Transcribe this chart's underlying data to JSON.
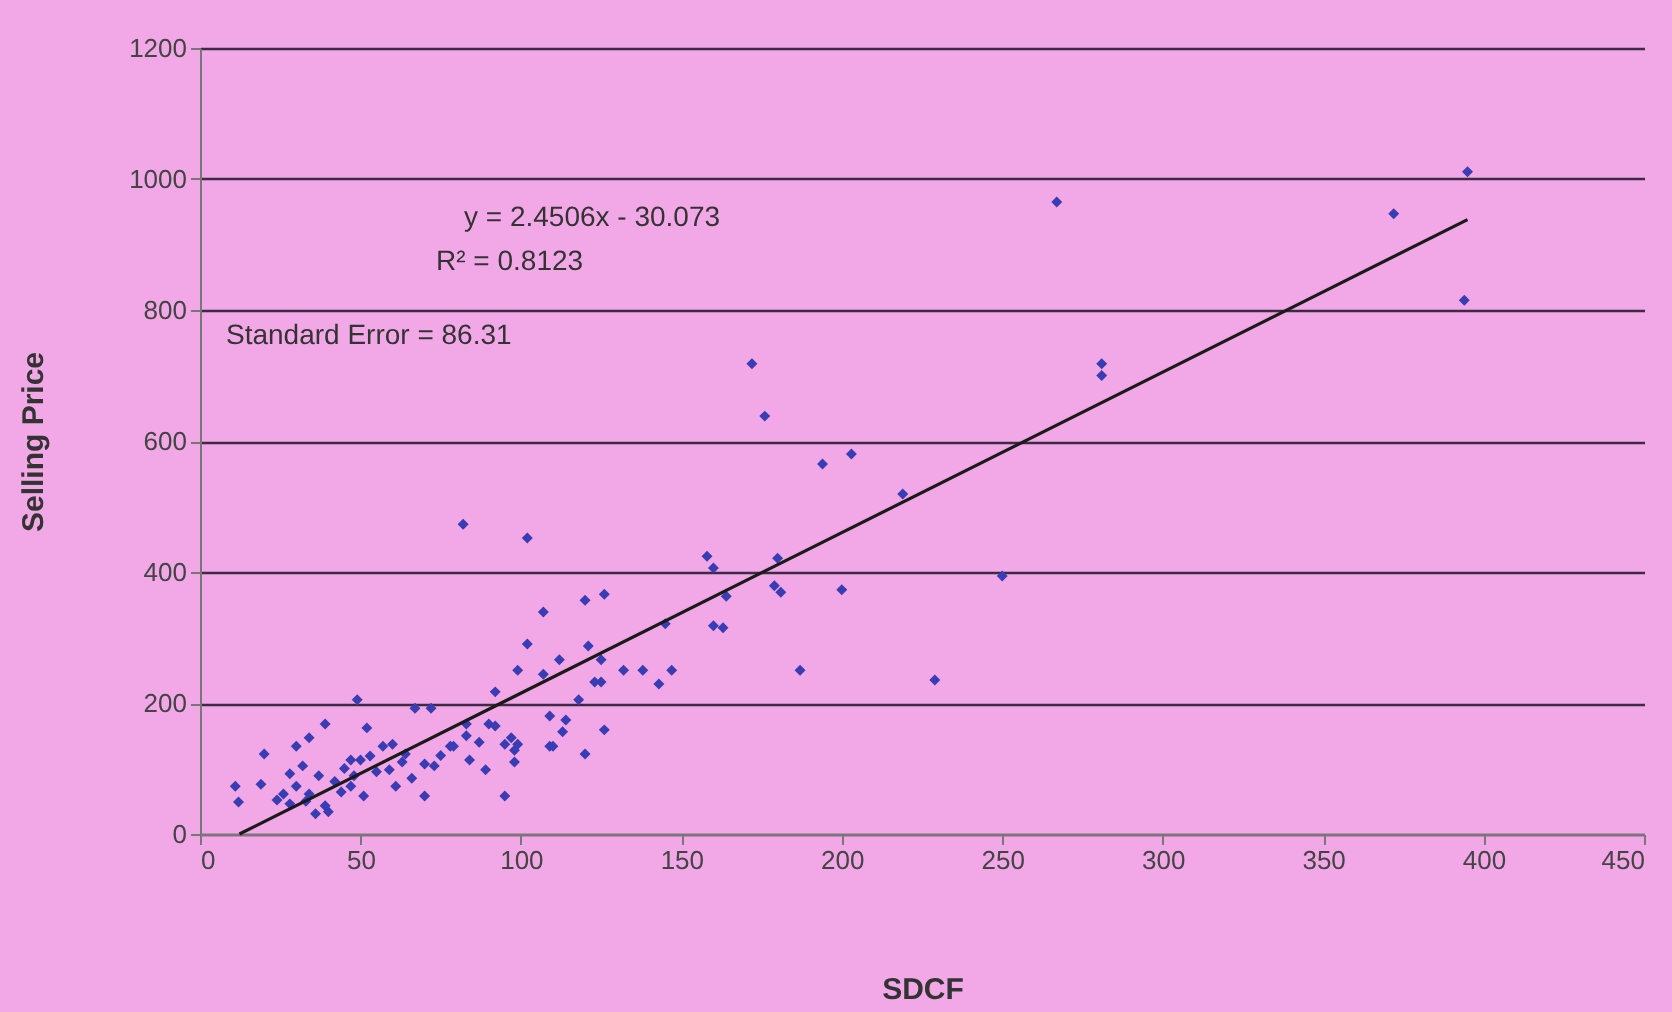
{
  "chart_data": {
    "type": "scatter",
    "xlabel": "SDCF",
    "ylabel": "Selling Price",
    "xlim": [
      0,
      450
    ],
    "xticks": [
      0,
      50,
      100,
      150,
      200,
      250,
      300,
      350,
      400,
      450
    ],
    "ylim": [
      0,
      1200
    ],
    "yticks": [
      0,
      200,
      400,
      600,
      800,
      1000,
      1200
    ],
    "grid": "y",
    "annotations": [
      "y = 2.4506x - 30.073",
      "R² = 0.8123",
      "Standard Error = 86.31"
    ],
    "series": [
      {
        "marker": "diamond",
        "color": "#3a3cb4",
        "x": [
          267,
          372,
          395,
          394,
          281,
          281,
          172,
          176,
          194,
          203,
          219,
          158,
          160,
          180,
          179,
          181,
          200,
          164,
          160,
          163,
          187,
          229,
          250,
          126,
          132,
          138,
          143,
          147,
          125,
          125,
          145,
          82,
          102,
          107,
          102,
          99,
          112,
          120,
          121,
          123,
          118,
          109,
          114,
          113,
          126,
          49,
          67,
          72,
          52,
          92,
          90,
          92,
          83,
          97,
          99,
          78,
          110,
          120,
          39,
          20,
          30,
          34,
          11,
          12,
          19,
          24,
          28,
          30,
          34,
          26,
          28,
          32,
          37,
          39,
          40,
          36,
          47,
          50,
          53,
          48,
          47,
          51,
          57,
          60,
          59,
          61,
          64,
          70,
          73,
          70,
          79,
          83,
          84,
          89,
          95,
          98,
          98,
          95,
          109,
          107,
          42,
          44,
          55,
          63,
          66,
          75,
          87,
          45,
          33
        ],
        "values": [
          965,
          947,
          1011,
          815,
          718,
          700,
          718,
          638,
          565,
          580,
          519,
          424,
          406,
          421,
          379,
          369,
          373,
          363,
          318,
          315,
          250,
          235,
          394,
          366,
          250,
          250,
          229,
          250,
          266,
          232,
          321,
          473,
          452,
          339,
          290,
          250,
          266,
          357,
          287,
          232,
          205,
          180,
          174,
          156,
          159,
          205,
          192,
          192,
          162,
          217,
          168,
          165,
          150,
          147,
          137,
          134,
          134,
          122,
          168,
          122,
          134,
          147,
          73,
          49,
          76,
          52,
          92,
          73,
          61,
          61,
          46,
          104,
          89,
          43,
          34,
          31,
          113,
          113,
          119,
          89,
          73,
          58,
          134,
          137,
          98,
          73,
          122,
          107,
          104,
          58,
          134,
          168,
          113,
          98,
          137,
          128,
          110,
          58,
          134,
          244,
          80,
          64,
          95,
          110,
          85,
          120,
          140,
          100,
          50
        ]
      },
      {
        "type": "line",
        "marker": "none",
        "color": "#1a1a1a",
        "x": [
          12.3,
          395
        ],
        "values": [
          0,
          938
        ]
      }
    ]
  }
}
